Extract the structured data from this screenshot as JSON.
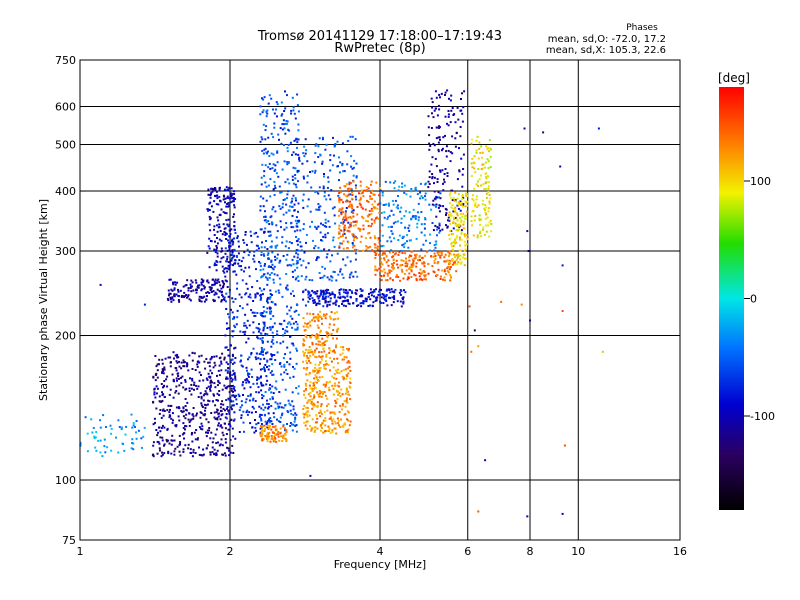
{
  "chart_data": {
    "type": "scatter",
    "title": "Tromsø 20141129 17:18:00–17:19:43",
    "subtitle": "RwPretec (8p)",
    "xlabel": "Frequency [MHz]",
    "ylabel": "Stationary phase Virtual Height [km]",
    "x_scale": "log",
    "y_scale": "log",
    "xlim": [
      1,
      16
    ],
    "ylim": [
      75,
      750
    ],
    "x_ticks": [
      1,
      2,
      4,
      6,
      8,
      10,
      16
    ],
    "y_ticks": [
      75,
      100,
      200,
      300,
      400,
      500,
      600,
      750
    ],
    "x_gridlines": [
      2,
      4,
      6,
      8,
      10
    ],
    "y_gridlines": [
      100,
      200,
      300,
      400,
      500,
      600
    ],
    "grid": true,
    "phases_box": {
      "title": "Phases",
      "line_o": "mean, sd,O: -72.0, 17.2",
      "line_x": "mean, sd,X: 105.3, 22.6"
    },
    "colorbar": {
      "label": "[deg]",
      "range": [
        -180,
        180
      ],
      "ticks": [
        100,
        0,
        -100
      ]
    },
    "clusters": [
      {
        "x": [
          1.0,
          1.35
        ],
        "y": [
          112,
          137
        ],
        "phase": -30,
        "n": 60
      },
      {
        "x": [
          1.4,
          2.05
        ],
        "y": [
          112,
          185
        ],
        "phase": -115,
        "n": 520
      },
      {
        "x": [
          1.5,
          2.0
        ],
        "y": [
          235,
          262
        ],
        "phase": -110,
        "n": 150
      },
      {
        "x": [
          1.8,
          2.05
        ],
        "y": [
          270,
          410
        ],
        "phase": -100,
        "n": 190
      },
      {
        "x": [
          1.95,
          2.45
        ],
        "y": [
          125,
          330
        ],
        "phase": -80,
        "n": 380
      },
      {
        "x": [
          2.3,
          2.75
        ],
        "y": [
          125,
          650
        ],
        "phase": -60,
        "n": 520
      },
      {
        "x": [
          2.3,
          2.6
        ],
        "y": [
          120,
          130
        ],
        "phase": 130,
        "n": 90
      },
      {
        "x": [
          2.8,
          3.5
        ],
        "y": [
          125,
          190
        ],
        "phase": 125,
        "n": 360
      },
      {
        "x": [
          2.8,
          3.3
        ],
        "y": [
          190,
          225
        ],
        "phase": 130,
        "n": 100
      },
      {
        "x": [
          2.8,
          4.5
        ],
        "y": [
          230,
          250
        ],
        "phase": -90,
        "n": 230
      },
      {
        "x": [
          2.7,
          3.6
        ],
        "y": [
          260,
          520
        ],
        "phase": -60,
        "n": 260
      },
      {
        "x": [
          3.3,
          4.0
        ],
        "y": [
          300,
          420
        ],
        "phase": 140,
        "n": 200
      },
      {
        "x": [
          3.9,
          5.7
        ],
        "y": [
          260,
          300
        ],
        "phase": 140,
        "n": 230
      },
      {
        "x": [
          4.0,
          5.3
        ],
        "y": [
          300,
          420
        ],
        "phase": -40,
        "n": 150
      },
      {
        "x": [
          5.0,
          5.9
        ],
        "y": [
          330,
          650
        ],
        "phase": -110,
        "n": 170
      },
      {
        "x": [
          5.5,
          6.0
        ],
        "y": [
          280,
          400
        ],
        "phase": 100,
        "n": 140
      },
      {
        "x": [
          6.1,
          6.7
        ],
        "y": [
          320,
          520
        ],
        "phase": 95,
        "n": 120
      }
    ],
    "scattered_points": [
      {
        "x": 6.0,
        "y": 320,
        "phase": 130
      },
      {
        "x": 6.05,
        "y": 230,
        "phase": 150
      },
      {
        "x": 6.1,
        "y": 185,
        "phase": 140
      },
      {
        "x": 6.2,
        "y": 205,
        "phase": -130
      },
      {
        "x": 6.3,
        "y": 190,
        "phase": 120
      },
      {
        "x": 6.5,
        "y": 110,
        "phase": -110
      },
      {
        "x": 6.3,
        "y": 86,
        "phase": 150
      },
      {
        "x": 7.0,
        "y": 235,
        "phase": 140
      },
      {
        "x": 7.7,
        "y": 232,
        "phase": 130
      },
      {
        "x": 7.8,
        "y": 540,
        "phase": -110
      },
      {
        "x": 7.9,
        "y": 330,
        "phase": -100
      },
      {
        "x": 7.95,
        "y": 300,
        "phase": -110
      },
      {
        "x": 8.0,
        "y": 215,
        "phase": -110
      },
      {
        "x": 7.9,
        "y": 84,
        "phase": -100
      },
      {
        "x": 8.5,
        "y": 530,
        "phase": -130
      },
      {
        "x": 9.3,
        "y": 280,
        "phase": -80
      },
      {
        "x": 9.3,
        "y": 225,
        "phase": 150
      },
      {
        "x": 9.4,
        "y": 118,
        "phase": 150
      },
      {
        "x": 9.3,
        "y": 85,
        "phase": -100
      },
      {
        "x": 9.2,
        "y": 450,
        "phase": -100
      },
      {
        "x": 11.0,
        "y": 540,
        "phase": -80
      },
      {
        "x": 11.2,
        "y": 185,
        "phase": 70
      },
      {
        "x": 2.9,
        "y": 102,
        "phase": -100
      },
      {
        "x": 1.1,
        "y": 255,
        "phase": -100
      },
      {
        "x": 1.35,
        "y": 232,
        "phase": -80
      }
    ]
  }
}
